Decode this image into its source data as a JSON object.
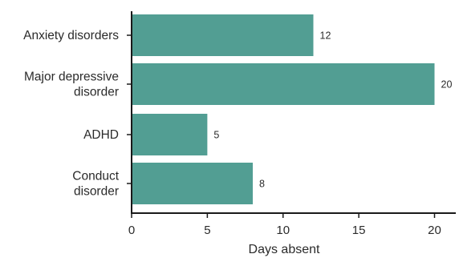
{
  "chart_data": {
    "type": "bar",
    "orientation": "horizontal",
    "categories": [
      [
        "Anxiety disorders"
      ],
      [
        "Major depressive",
        "disorder"
      ],
      [
        "ADHD"
      ],
      [
        "Conduct",
        "disorder"
      ]
    ],
    "values": [
      12,
      20,
      5,
      8
    ],
    "xlabel": "Days absent",
    "xlim": [
      0,
      20
    ],
    "xticks": [
      0,
      5,
      10,
      15,
      20
    ],
    "grid": false,
    "bar_color": "#529e93",
    "data_labels": true
  }
}
